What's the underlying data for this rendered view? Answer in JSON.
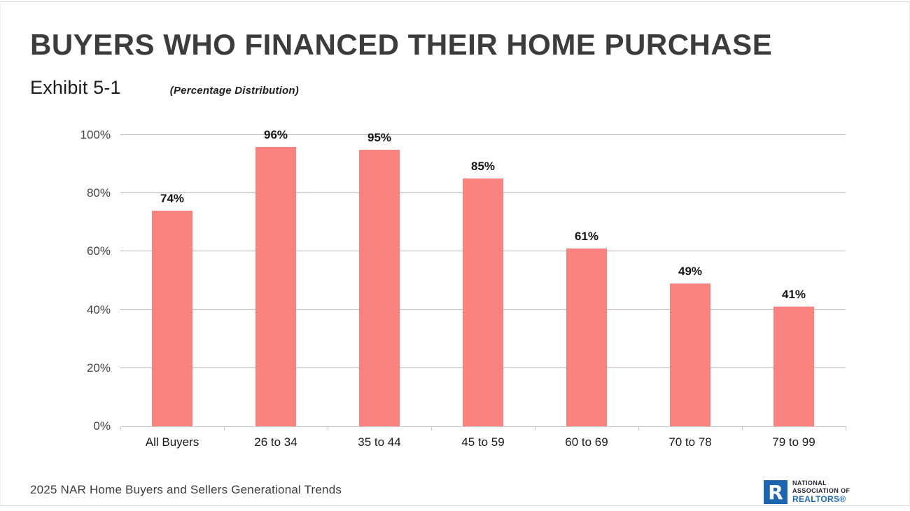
{
  "page": {
    "title": "BUYERS WHO FINANCED THEIR HOME PURCHASE",
    "exhibit_label": "Exhibit 5-1",
    "subtitle": "(Percentage Distribution)",
    "footer_source": "2025 NAR Home Buyers and Sellers Generational Trends"
  },
  "logo": {
    "letter": "R",
    "line1": "NATIONAL",
    "line2": "ASSOCIATION OF",
    "line3": "REALTORS®",
    "square_color": "#1E65AF",
    "name_color": "#1f2230",
    "realtors_color": "#1E6BB5"
  },
  "chart_data": {
    "type": "bar",
    "title": "BUYERS WHO FINANCED THEIR HOME PURCHASE",
    "subtitle": "(Percentage Distribution)",
    "categories": [
      "All Buyers",
      "26 to 34",
      "35 to 44",
      "45 to 59",
      "60 to 69",
      "70 to 78",
      "79 to 99"
    ],
    "values": [
      74,
      96,
      95,
      85,
      61,
      49,
      41
    ],
    "value_labels": [
      "74%",
      "96%",
      "95%",
      "85%",
      "61%",
      "49%",
      "41%"
    ],
    "xlabel": "",
    "ylabel": "",
    "ylim": [
      0,
      100
    ],
    "yticks": [
      0,
      20,
      40,
      60,
      80,
      100
    ],
    "ytick_labels": [
      "0%",
      "20%",
      "40%",
      "60%",
      "80%",
      "100%"
    ],
    "grid": true,
    "legend": false,
    "bar_color": "#F9827F",
    "gridline_color": "#B5B5B5",
    "axis_color": "#C9C9C9"
  }
}
